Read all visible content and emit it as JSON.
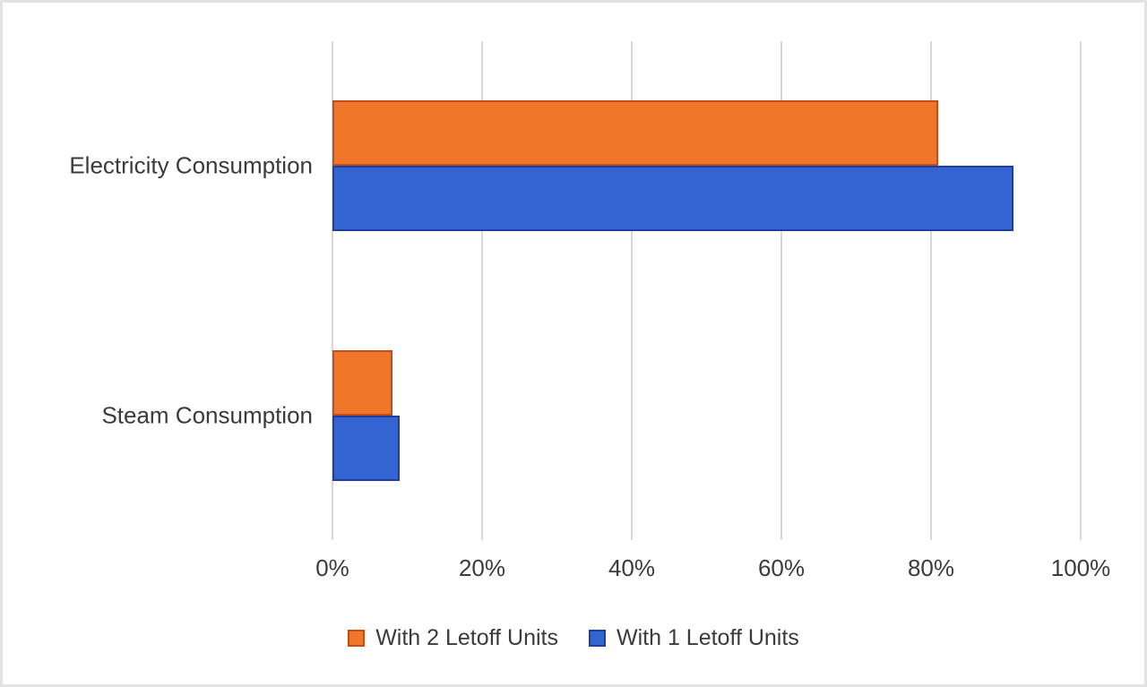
{
  "chart_data": {
    "type": "bar",
    "orientation": "horizontal",
    "title": "",
    "xlabel": "",
    "ylabel": "",
    "categories": [
      "Electricity Consumption",
      "Steam Consumption"
    ],
    "series": [
      {
        "name": "With 2 Letoff Units",
        "color": "#f0772a",
        "border_color": "#c24d1b",
        "values": [
          81,
          8
        ]
      },
      {
        "name": "With 1 Letoff Units",
        "color": "#3364d1",
        "border_color": "#1e3f9e",
        "values": [
          91,
          9
        ]
      }
    ],
    "x_axis": {
      "min": 0,
      "max": 100,
      "unit": "%",
      "ticks": [
        "0%",
        "20%",
        "40%",
        "60%",
        "80%",
        "100%"
      ]
    },
    "grid": "vertical-on",
    "legend_position": "bottom"
  },
  "colors": {
    "background": "#ffffff",
    "frame_border": "#e2e2e2",
    "gridline": "#d8d8d8",
    "text": "#3b3b3b"
  }
}
